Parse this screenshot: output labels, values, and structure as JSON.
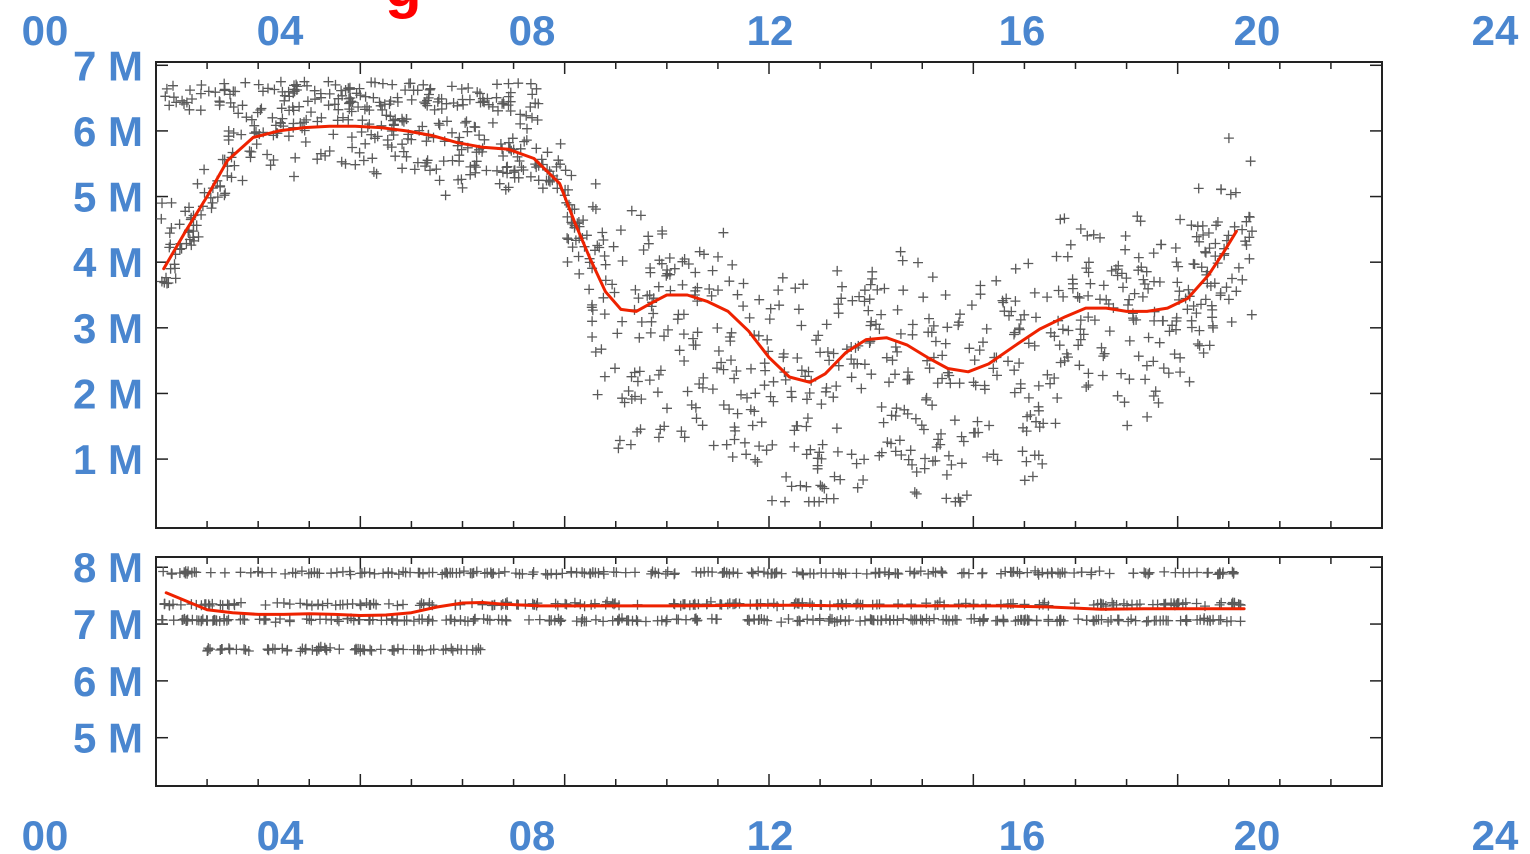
{
  "title_fragment": "g",
  "colors": {
    "tick_labels": "#4a86cf",
    "title": "#ff0000",
    "points": "#5a5a5a",
    "trend": "#ee2200"
  },
  "chart_data": [
    {
      "type": "scatter",
      "title": "",
      "xlabel": "",
      "ylabel": "",
      "xlim": [
        0,
        24
      ],
      "ylim": [
        -0.05,
        7.05
      ],
      "x_ticks": [
        "00",
        "04",
        "08",
        "12",
        "16",
        "20",
        "24"
      ],
      "x_ticks_position": "top",
      "y_ticks": [
        {
          "value": 1,
          "label": "1 M"
        },
        {
          "value": 2,
          "label": "2 M"
        },
        {
          "value": 3,
          "label": "3 M"
        },
        {
          "value": 4,
          "label": "4 M"
        },
        {
          "value": 5,
          "label": "5 M"
        },
        {
          "value": 6,
          "label": "6 M"
        },
        {
          "value": 7,
          "label": "7 M"
        }
      ],
      "grid": false,
      "marker": "+",
      "series": [
        {
          "kind": "trend_line",
          "points": [
            [
              0.15,
              3.9
            ],
            [
              0.6,
              4.5
            ],
            [
              1.0,
              5.0
            ],
            [
              1.4,
              5.55
            ],
            [
              1.9,
              5.9
            ],
            [
              2.4,
              6.0
            ],
            [
              2.9,
              6.05
            ],
            [
              3.4,
              6.07
            ],
            [
              3.9,
              6.07
            ],
            [
              4.4,
              6.05
            ],
            [
              4.9,
              6.0
            ],
            [
              5.4,
              5.93
            ],
            [
              5.9,
              5.82
            ],
            [
              6.4,
              5.75
            ],
            [
              6.9,
              5.72
            ],
            [
              7.4,
              5.58
            ],
            [
              7.9,
              5.2
            ],
            [
              8.2,
              4.6
            ],
            [
              8.5,
              4.05
            ],
            [
              8.8,
              3.55
            ],
            [
              9.1,
              3.28
            ],
            [
              9.4,
              3.25
            ],
            [
              9.7,
              3.38
            ],
            [
              10.0,
              3.5
            ],
            [
              10.4,
              3.5
            ],
            [
              10.8,
              3.4
            ],
            [
              11.2,
              3.25
            ],
            [
              11.6,
              2.95
            ],
            [
              12.0,
              2.55
            ],
            [
              12.4,
              2.25
            ],
            [
              12.8,
              2.17
            ],
            [
              13.1,
              2.3
            ],
            [
              13.5,
              2.62
            ],
            [
              13.9,
              2.82
            ],
            [
              14.3,
              2.85
            ],
            [
              14.7,
              2.74
            ],
            [
              15.1,
              2.55
            ],
            [
              15.5,
              2.38
            ],
            [
              15.9,
              2.33
            ],
            [
              16.3,
              2.45
            ],
            [
              16.8,
              2.72
            ],
            [
              17.3,
              2.98
            ],
            [
              17.8,
              3.17
            ],
            [
              18.2,
              3.3
            ],
            [
              18.6,
              3.3
            ],
            [
              19.0,
              3.25
            ],
            [
              19.4,
              3.25
            ],
            [
              19.8,
              3.3
            ],
            [
              20.2,
              3.45
            ],
            [
              20.6,
              3.8
            ],
            [
              20.9,
              4.15
            ],
            [
              21.15,
              4.47
            ]
          ]
        }
      ]
    },
    {
      "type": "scatter",
      "title": "",
      "xlabel": "",
      "ylabel": "",
      "xlim": [
        0,
        24
      ],
      "ylim": [
        4.15,
        8.18
      ],
      "x_ticks": [
        "00",
        "04",
        "08",
        "12",
        "16",
        "20",
        "24"
      ],
      "x_ticks_position": "bottom",
      "y_ticks": [
        {
          "value": 5,
          "label": "5 M"
        },
        {
          "value": 6,
          "label": "6 M"
        },
        {
          "value": 7,
          "label": "7 M"
        },
        {
          "value": 8,
          "label": "8 M"
        }
      ],
      "grid": false,
      "marker": "+",
      "series": [
        {
          "kind": "trend_line",
          "points": [
            [
              0.2,
              7.55
            ],
            [
              0.6,
              7.4
            ],
            [
              1.0,
              7.25
            ],
            [
              1.5,
              7.2
            ],
            [
              2.0,
              7.17
            ],
            [
              2.5,
              7.17
            ],
            [
              3.0,
              7.18
            ],
            [
              3.5,
              7.17
            ],
            [
              4.0,
              7.15
            ],
            [
              4.5,
              7.16
            ],
            [
              5.0,
              7.2
            ],
            [
              5.5,
              7.3
            ],
            [
              6.0,
              7.37
            ],
            [
              6.4,
              7.38
            ],
            [
              6.8,
              7.35
            ],
            [
              7.5,
              7.32
            ],
            [
              8.5,
              7.32
            ],
            [
              9.5,
              7.32
            ],
            [
              10.5,
              7.32
            ],
            [
              11.5,
              7.33
            ],
            [
              12.5,
              7.33
            ],
            [
              13.5,
              7.32
            ],
            [
              14.5,
              7.32
            ],
            [
              15.5,
              7.32
            ],
            [
              16.5,
              7.32
            ],
            [
              17.5,
              7.3
            ],
            [
              18.0,
              7.28
            ],
            [
              18.5,
              7.26
            ],
            [
              19.5,
              7.27
            ],
            [
              20.5,
              7.27
            ],
            [
              21.3,
              7.27
            ]
          ]
        }
      ]
    }
  ]
}
